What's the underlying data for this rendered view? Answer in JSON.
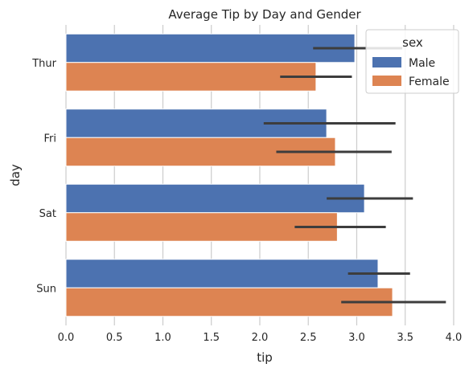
{
  "chart_data": {
    "type": "bar",
    "orientation": "horizontal",
    "title": "Average Tip by Day and Gender",
    "xlabel": "tip",
    "ylabel": "day",
    "xlim": [
      0,
      4.1
    ],
    "xticks": [
      0.0,
      0.5,
      1.0,
      1.5,
      2.0,
      2.5,
      3.0,
      3.5,
      4.0
    ],
    "xtick_labels": [
      "0.0",
      "0.5",
      "1.0",
      "1.5",
      "2.0",
      "2.5",
      "3.0",
      "3.5",
      "4.0"
    ],
    "categories": [
      "Thur",
      "Fri",
      "Sat",
      "Sun"
    ],
    "grid": true,
    "legend": {
      "title": "sex",
      "placement": "top-right"
    },
    "series": [
      {
        "name": "Male",
        "color": "#4c72b0",
        "values": [
          2.98,
          2.69,
          3.08,
          3.22
        ],
        "ci": [
          [
            2.55,
            3.47
          ],
          [
            2.04,
            3.4
          ],
          [
            2.69,
            3.58
          ],
          [
            2.91,
            3.55
          ]
        ]
      },
      {
        "name": "Female",
        "color": "#dd8452",
        "values": [
          2.58,
          2.78,
          2.8,
          3.37
        ],
        "ci": [
          [
            2.21,
            2.95
          ],
          [
            2.17,
            3.36
          ],
          [
            2.36,
            3.3
          ],
          [
            2.84,
            3.92
          ]
        ]
      }
    ],
    "errorbar_color": "#3d3d3d"
  }
}
